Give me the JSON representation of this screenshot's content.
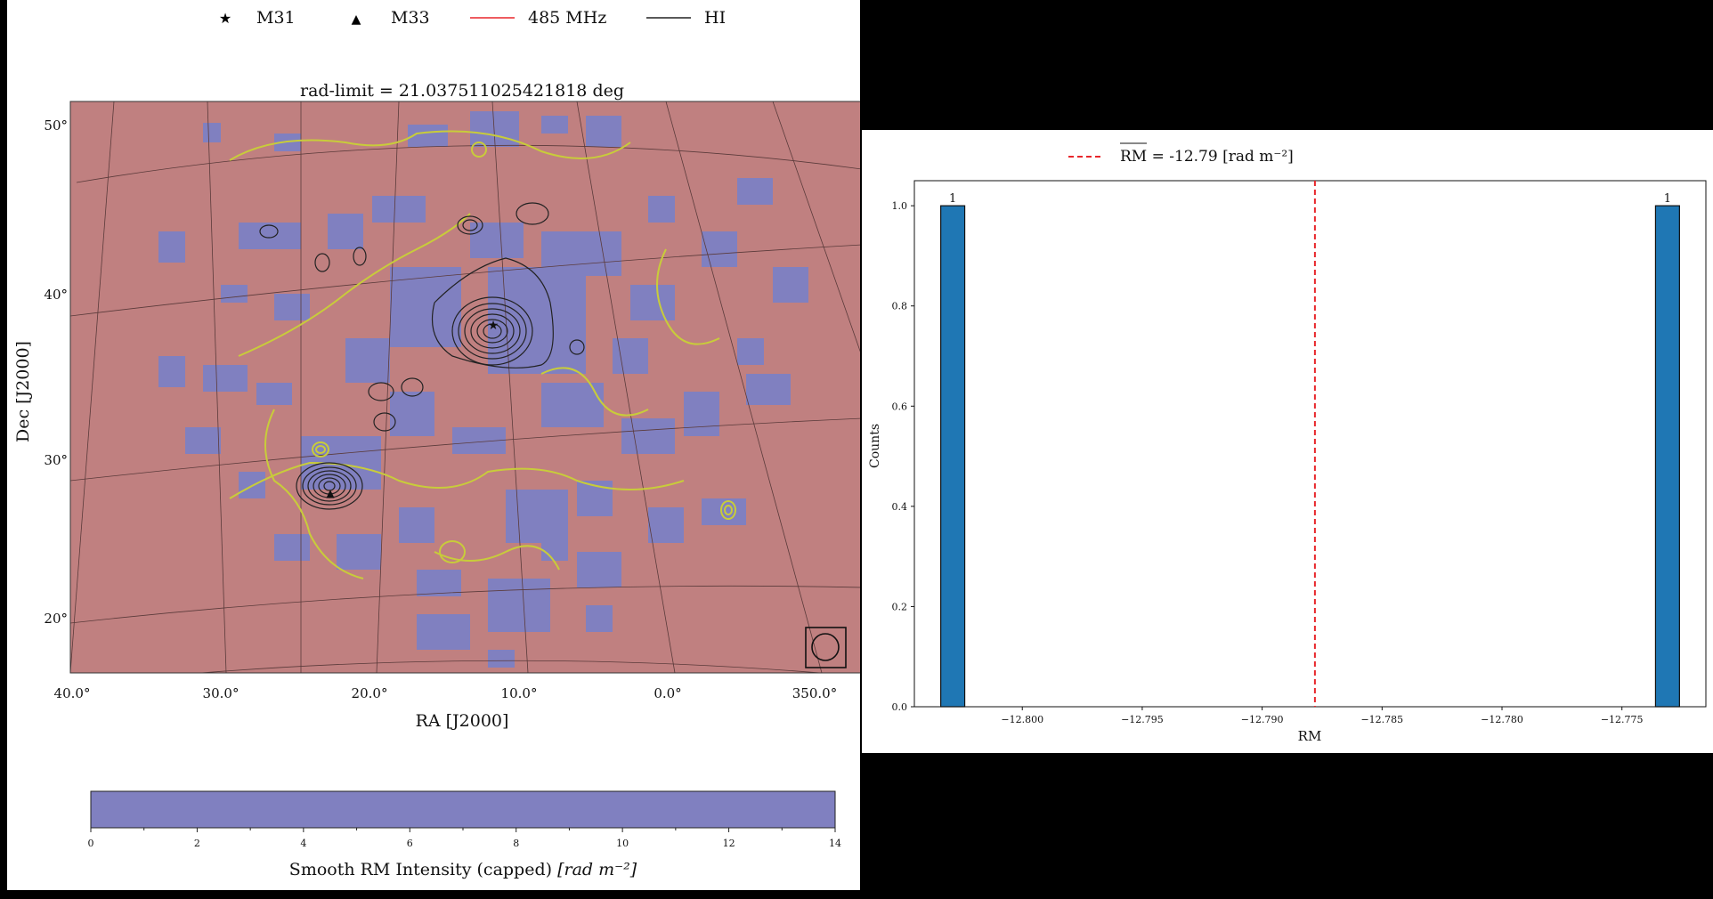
{
  "left": {
    "legend": {
      "items": [
        {
          "label": "M31",
          "icon": "star-icon"
        },
        {
          "label": "M33",
          "icon": "triangle-icon"
        },
        {
          "label": "485 MHz",
          "color": "#e8262b"
        },
        {
          "label": "HI",
          "color": "#222222"
        }
      ]
    },
    "map": {
      "title": "rad-limit = 21.037511025421818 deg",
      "xlabel": "RA [J2000]",
      "ylabel": "Dec [J2000]",
      "x_ticks": [
        "40.0°",
        "30.0°",
        "20.0°",
        "10.0°",
        "0.0°",
        "350.0°"
      ],
      "y_ticks": [
        "50°",
        "40°",
        "30°",
        "20°"
      ],
      "background_color": "#c08080",
      "patch_color": "#8080c0",
      "contour_485_color": "#c8cc3a",
      "contour_hi_color": "#222222",
      "markers": [
        {
          "name": "M31",
          "ra": 10.68,
          "dec": 41.27
        },
        {
          "name": "M33",
          "ra": 23.46,
          "dec": 30.66
        }
      ]
    },
    "colorbar": {
      "label": "Smooth RM Intensity (capped)",
      "unit": "[rad m⁻²]",
      "ticks": [
        "0",
        "2",
        "4",
        "6",
        "8",
        "10",
        "12",
        "14"
      ],
      "range": [
        0,
        14
      ],
      "color": "#8080c0"
    }
  },
  "chart_data": {
    "type": "bar",
    "xlabel": "RM",
    "ylabel": "Counts",
    "x_ticks": [
      -12.8,
      -12.795,
      -12.79,
      -12.785,
      -12.78,
      -12.775
    ],
    "x_tick_labels": [
      "−12.800",
      "−12.795",
      "−12.790",
      "−12.785",
      "−12.780",
      "−12.775"
    ],
    "y_ticks": [
      0.0,
      0.2,
      0.4,
      0.6,
      0.8,
      1.0
    ],
    "y_tick_labels": [
      "0.0",
      "0.2",
      "0.4",
      "0.6",
      "0.8",
      "1.0"
    ],
    "xlim": [
      -12.8045,
      -12.7715
    ],
    "ylim": [
      0,
      1.05
    ],
    "bars": [
      {
        "x0": -12.8034,
        "x1": -12.8024,
        "count": 1,
        "label": "1"
      },
      {
        "x0": -12.7736,
        "x1": -12.7726,
        "count": 1,
        "label": "1"
      }
    ],
    "mean_line": {
      "x": -12.7878,
      "legend": "RM = -12.79 [rad m⁻²]",
      "color": "#e8262b"
    },
    "bar_color": "#1f77b4"
  }
}
